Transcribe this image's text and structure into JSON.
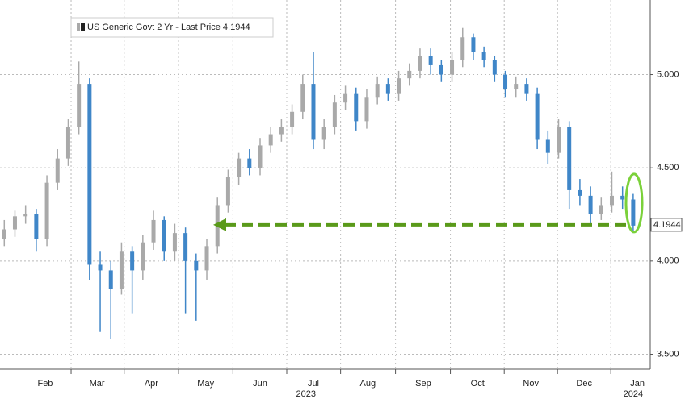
{
  "chart_data": {
    "type": "candlestick",
    "legend": "US Generic Govt 2 Yr - Last Price 4.1944",
    "up_color": "#a9a9a9",
    "down_color": "#3f86c8",
    "open": [
      4.12,
      4.17,
      4.24,
      4.25,
      4.12,
      4.42,
      4.55,
      4.72,
      4.95,
      3.98,
      3.95,
      3.85,
      4.05,
      3.95,
      4.1,
      4.22,
      4.05,
      4.15,
      4.0,
      3.95,
      4.08,
      4.3,
      4.45,
      4.55,
      4.5,
      4.62,
      4.68,
      4.72,
      4.8,
      4.95,
      4.65,
      4.72,
      4.85,
      4.9,
      4.75,
      4.88,
      4.95,
      4.9,
      4.98,
      5.02,
      5.1,
      5.05,
      5.0,
      5.08,
      5.2,
      5.12,
      5.08,
      5.0,
      4.92,
      4.95,
      4.9,
      4.65,
      4.58,
      4.72,
      4.38,
      4.35,
      4.25,
      4.3,
      4.35,
      4.33
    ],
    "high": [
      4.22,
      4.27,
      4.3,
      4.28,
      4.46,
      4.6,
      4.76,
      5.07,
      4.98,
      4.05,
      4.0,
      4.1,
      4.08,
      4.14,
      4.27,
      4.24,
      4.2,
      4.18,
      4.04,
      4.12,
      4.34,
      4.49,
      4.58,
      4.6,
      4.66,
      4.72,
      4.76,
      4.84,
      5.0,
      5.12,
      4.76,
      4.89,
      4.94,
      4.93,
      4.92,
      4.99,
      4.98,
      5.02,
      5.06,
      5.14,
      5.14,
      5.08,
      5.12,
      5.25,
      5.22,
      5.15,
      5.1,
      5.02,
      4.99,
      4.98,
      4.93,
      4.7,
      4.76,
      4.75,
      4.44,
      4.4,
      4.34,
      4.48,
      4.4,
      4.36
    ],
    "low": [
      4.08,
      4.13,
      4.2,
      4.05,
      4.08,
      4.38,
      4.51,
      4.68,
      3.9,
      3.62,
      3.58,
      3.82,
      3.72,
      3.9,
      4.06,
      4.0,
      4.0,
      3.72,
      3.68,
      3.9,
      4.04,
      4.26,
      4.41,
      4.46,
      4.46,
      4.58,
      4.64,
      4.68,
      4.76,
      4.6,
      4.6,
      4.68,
      4.81,
      4.7,
      4.71,
      4.84,
      4.86,
      4.86,
      4.94,
      4.98,
      5.0,
      4.96,
      4.96,
      5.04,
      5.08,
      5.04,
      4.96,
      4.88,
      4.88,
      4.86,
      4.6,
      4.52,
      4.55,
      4.28,
      4.3,
      4.2,
      4.22,
      4.26,
      4.28,
      4.15
    ],
    "close": [
      4.17,
      4.24,
      4.25,
      4.12,
      4.42,
      4.55,
      4.72,
      4.95,
      3.98,
      3.95,
      3.85,
      4.05,
      3.95,
      4.1,
      4.22,
      4.05,
      4.15,
      4.0,
      3.95,
      4.08,
      4.3,
      4.45,
      4.55,
      4.5,
      4.62,
      4.68,
      4.72,
      4.8,
      4.95,
      4.65,
      4.72,
      4.85,
      4.9,
      4.75,
      4.88,
      4.95,
      4.9,
      4.98,
      5.02,
      5.1,
      5.05,
      5.0,
      5.08,
      5.2,
      5.12,
      5.08,
      5.0,
      4.92,
      4.95,
      4.9,
      4.65,
      4.58,
      4.72,
      4.38,
      4.35,
      4.25,
      4.3,
      4.35,
      4.33,
      4.19
    ],
    "last_price": {
      "value": 4.1944,
      "label": "4.1944"
    },
    "annotation_color": "#5a9a1a",
    "highlight_color": "#7bd13a",
    "xlim": [
      -0.4,
      60.6
    ],
    "xticks": [
      {
        "value": 3.84,
        "label": "Feb"
      },
      {
        "value": 8.7,
        "label": "Mar"
      },
      {
        "value": 13.8,
        "label": "Apr"
      },
      {
        "value": 18.9,
        "label": "May"
      },
      {
        "value": 24.0,
        "label": "Jun"
      },
      {
        "value": 29.0,
        "label": "Jul"
      },
      {
        "value": 34.1,
        "label": "Aug"
      },
      {
        "value": 39.3,
        "label": "Sep"
      },
      {
        "value": 44.4,
        "label": "Oct"
      },
      {
        "value": 49.4,
        "label": "Nov"
      },
      {
        "value": 54.4,
        "label": "Dec"
      },
      {
        "value": 59.4,
        "label": "Jan"
      }
    ],
    "year_labels": [
      {
        "value": 28.3,
        "label": "2023"
      },
      {
        "value": 59.0,
        "label": "2024"
      }
    ],
    "ylim": [
      3.42,
      5.4
    ],
    "yticks": [
      {
        "value": 3.5,
        "label": "3.500"
      },
      {
        "value": 4.0,
        "label": "4.000"
      },
      {
        "value": 4.5,
        "label": "4.500"
      },
      {
        "value": 5.0,
        "label": "5.000"
      }
    ],
    "grid": true
  }
}
